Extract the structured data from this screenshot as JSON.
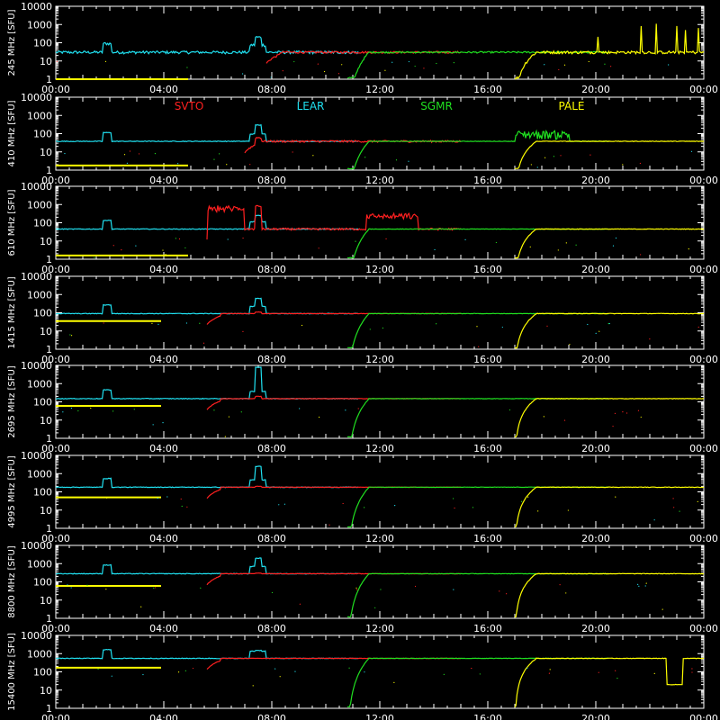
{
  "colors": {
    "background": "#000000",
    "axis": "#ffffff",
    "SVTO": "#ff2020",
    "LEAR": "#20e0f0",
    "SGMR": "#20e020",
    "PALE": "#ffff00"
  },
  "legend": [
    {
      "name": "SVTO",
      "color": "#ff2020"
    },
    {
      "name": "LEAR",
      "color": "#20e0f0"
    },
    {
      "name": "SGMR",
      "color": "#20e020"
    },
    {
      "name": "PALE",
      "color": "#ffff00"
    }
  ],
  "chart_data": {
    "type": "line",
    "x_unit": "UT hours",
    "xlim": [
      0,
      24
    ],
    "x_tick_labels": [
      "00:00",
      "04:00",
      "08:00",
      "12:00",
      "16:00",
      "20:00",
      "00:00"
    ],
    "y_scale": "log",
    "ylim": [
      1,
      10000
    ],
    "y_tick_labels": [
      "1",
      "10",
      "100",
      "1000",
      "10000"
    ],
    "grid": false,
    "legend_placement": "top, inside second panel",
    "stations": {
      "SVTO": {
        "start": 5.6,
        "end": 15.0
      },
      "LEAR": {
        "start": 0.0,
        "end": 11.0
      },
      "SGMR": {
        "start": 10.8,
        "end": 20.5
      },
      "PALE": {
        "start": 17.0,
        "end": 24.0
      }
    },
    "panels": [
      {
        "ylabel": "245 MHz [SFU]",
        "base": 30,
        "pale_early": 0.9,
        "svto_start": 7.8,
        "peak_cyan": 200,
        "peak_red": null
      },
      {
        "ylabel": "410 MHz [SFU]",
        "base": 38,
        "pale_early": 1.8,
        "svto_start": 7.0,
        "peak_cyan": 300,
        "peak_red": 60
      },
      {
        "ylabel": "610 MHz [SFU]",
        "base": 45,
        "pale_early": 1.6,
        "svto_start": 5.6,
        "peak_cyan": 250,
        "peak_red": 800
      },
      {
        "ylabel": "1415 MHz [SFU]",
        "base": 90,
        "pale_early": 35,
        "svto_start": 5.6,
        "peak_cyan": 600,
        "peak_red": 110
      },
      {
        "ylabel": "2695 MHz [SFU]",
        "base": 150,
        "pale_early": 60,
        "svto_start": 5.6,
        "peak_cyan": 8000,
        "peak_red": 200
      },
      {
        "ylabel": "4995 MHz [SFU]",
        "base": 180,
        "pale_early": 50,
        "svto_start": 5.6,
        "peak_cyan": 2500,
        "peak_red": 200
      },
      {
        "ylabel": "8800 MHz [SFU]",
        "base": 280,
        "pale_early": 60,
        "svto_start": 5.6,
        "peak_cyan": 2000,
        "peak_red": 300
      },
      {
        "ylabel": "15400 MHz [SFU]",
        "base": 550,
        "pale_early": 170,
        "svto_start": 5.6,
        "peak_cyan": 1500,
        "peak_red": 550
      }
    ]
  }
}
